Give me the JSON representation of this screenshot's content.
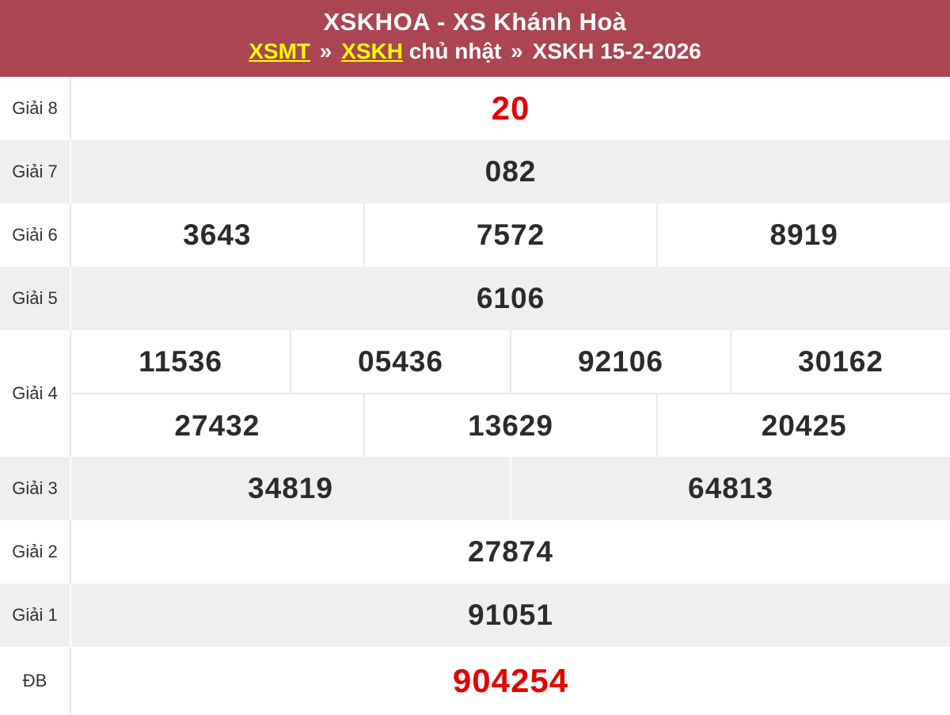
{
  "header": {
    "title": "XSKHOA - XS Khánh Hoà",
    "breadcrumb": {
      "link_region": "XSMT",
      "sep1": "»",
      "link_station": "XSKH",
      "day_text": "chủ nhật",
      "sep2": "»",
      "current": "XSKH 15-2-2026"
    }
  },
  "results": {
    "rows": [
      {
        "label": "Giải 8",
        "numbers": [
          "20"
        ],
        "highlight": true
      },
      {
        "label": "Giải 7",
        "numbers": [
          "082"
        ]
      },
      {
        "label": "Giải 6",
        "numbers": [
          "3643",
          "7572",
          "8919"
        ]
      },
      {
        "label": "Giải 5",
        "numbers": [
          "6106"
        ]
      },
      {
        "label": "Giải 4",
        "lines": [
          [
            "11536",
            "05436",
            "92106",
            "30162"
          ],
          [
            "27432",
            "13629",
            "20425"
          ]
        ]
      },
      {
        "label": "Giải 3",
        "numbers": [
          "34819",
          "64813"
        ]
      },
      {
        "label": "Giải 2",
        "numbers": [
          "27874"
        ]
      },
      {
        "label": "Giải 1",
        "numbers": [
          "91051"
        ]
      },
      {
        "label": "ĐB",
        "numbers": [
          "904254"
        ],
        "highlight": true
      }
    ]
  },
  "colors": {
    "header_bg": "#ab4552",
    "link_yellow": "#ffff00",
    "highlight_red": "#e60000",
    "row_alt_bg": "#efefef",
    "number_text": "#2b2b2b",
    "label_text": "#333333"
  }
}
